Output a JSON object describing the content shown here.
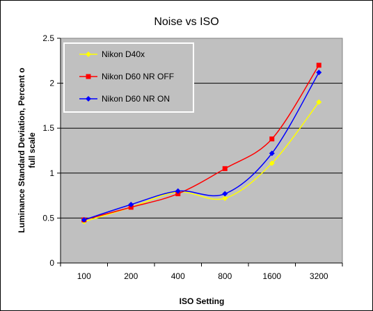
{
  "chart_data": {
    "type": "line",
    "title": "Noise vs ISO",
    "xlabel": "ISO Setting",
    "ylabel_lines": [
      "Luminance Standard Deviation, Percent o",
      "full scale"
    ],
    "categories": [
      "100",
      "200",
      "400",
      "800",
      "1600",
      "3200"
    ],
    "ylim": [
      0,
      2.5
    ],
    "yticks": [
      "0",
      "0.5",
      "1",
      "1.5",
      "2",
      "2.5"
    ],
    "grid": true,
    "legend_position": "top-left",
    "plot_background": "#c0c0c0",
    "series": [
      {
        "name": "Nikon D40x",
        "color": "#ffff00",
        "marker": "diamond",
        "values": [
          0.46,
          0.62,
          0.79,
          0.72,
          1.11,
          1.79
        ]
      },
      {
        "name": "Nikon D60 NR OFF",
        "color": "#ff0000",
        "marker": "square",
        "values": [
          0.48,
          0.62,
          0.77,
          1.05,
          1.38,
          2.2
        ]
      },
      {
        "name": "Nikon D60 NR ON",
        "color": "#0000ff",
        "marker": "diamond",
        "values": [
          0.48,
          0.65,
          0.8,
          0.77,
          1.22,
          2.12
        ]
      }
    ]
  }
}
